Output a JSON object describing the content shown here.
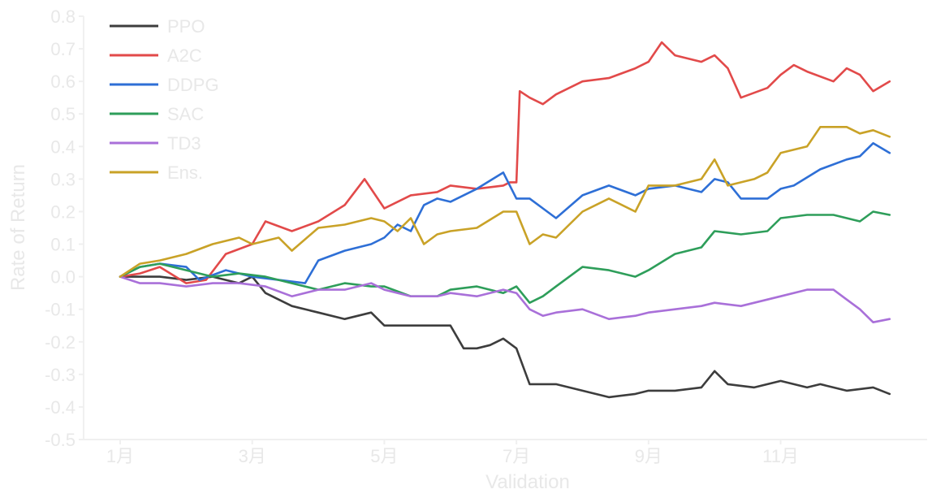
{
  "chart_data": {
    "type": "line",
    "title": "",
    "xlabel": "Validation",
    "ylabel": "Rate of Return",
    "ylim": [
      -0.5,
      0.8
    ],
    "yticks": [
      -0.5,
      -0.4,
      -0.3,
      -0.2,
      -0.1,
      0.0,
      0.1,
      0.2,
      0.3,
      0.4,
      0.5,
      0.6,
      0.7,
      0.8
    ],
    "ytick_labels": [
      "-0.5",
      "-0.4",
      "-0.3",
      "-0.2",
      "-0.1",
      "0.0",
      "0.1",
      "0.2",
      "0.3",
      "0.4",
      "0.5",
      "0.6",
      "0.7",
      "0.8"
    ],
    "xlim": [
      1,
      12.8
    ],
    "xticks": [
      1,
      3,
      5,
      7,
      9,
      11
    ],
    "xtick_labels": [
      "1月",
      "3月",
      "5月",
      "7月",
      "9月",
      "11月"
    ],
    "grid": false,
    "legend_position": "top-left",
    "series": [
      {
        "name": "PPO",
        "color": "#3d3d3d",
        "x": [
          1.0,
          1.3,
          1.6,
          2.0,
          2.4,
          2.8,
          3.0,
          3.2,
          3.6,
          4.0,
          4.4,
          4.8,
          5.0,
          5.4,
          5.8,
          6.0,
          6.2,
          6.4,
          6.6,
          6.8,
          7.0,
          7.2,
          7.4,
          7.6,
          8.0,
          8.4,
          8.8,
          9.0,
          9.4,
          9.8,
          10.0,
          10.2,
          10.6,
          11.0,
          11.4,
          11.6,
          12.0,
          12.4,
          12.65
        ],
        "values": [
          0.0,
          0.0,
          0.0,
          -0.01,
          0.0,
          -0.02,
          0.0,
          -0.05,
          -0.09,
          -0.11,
          -0.13,
          -0.11,
          -0.15,
          -0.15,
          -0.15,
          -0.15,
          -0.22,
          -0.22,
          -0.21,
          -0.19,
          -0.22,
          -0.33,
          -0.33,
          -0.33,
          -0.35,
          -0.37,
          -0.36,
          -0.35,
          -0.35,
          -0.34,
          -0.29,
          -0.33,
          -0.34,
          -0.32,
          -0.34,
          -0.33,
          -0.35,
          -0.34,
          -0.36
        ]
      },
      {
        "name": "A2C",
        "color": "#e24a4a",
        "x": [
          1.0,
          1.3,
          1.6,
          2.0,
          2.3,
          2.6,
          3.0,
          3.2,
          3.6,
          4.0,
          4.4,
          4.7,
          5.0,
          5.4,
          5.8,
          6.0,
          6.4,
          6.8,
          6.9,
          7.0,
          7.05,
          7.2,
          7.4,
          7.6,
          8.0,
          8.4,
          8.8,
          9.0,
          9.2,
          9.4,
          9.8,
          10.0,
          10.2,
          10.4,
          10.8,
          11.0,
          11.2,
          11.4,
          11.8,
          12.0,
          12.2,
          12.4,
          12.65
        ],
        "values": [
          0.0,
          0.01,
          0.03,
          -0.02,
          -0.01,
          0.07,
          0.1,
          0.17,
          0.14,
          0.17,
          0.22,
          0.3,
          0.21,
          0.25,
          0.26,
          0.28,
          0.27,
          0.28,
          0.29,
          0.29,
          0.57,
          0.55,
          0.53,
          0.56,
          0.6,
          0.61,
          0.64,
          0.66,
          0.72,
          0.68,
          0.66,
          0.68,
          0.64,
          0.55,
          0.58,
          0.62,
          0.65,
          0.63,
          0.6,
          0.64,
          0.62,
          0.57,
          0.6
        ]
      },
      {
        "name": "DDPG",
        "color": "#2e6fd6",
        "x": [
          1.0,
          1.3,
          1.6,
          2.0,
          2.2,
          2.6,
          3.0,
          3.4,
          3.8,
          4.0,
          4.4,
          4.8,
          5.0,
          5.2,
          5.4,
          5.6,
          5.8,
          6.0,
          6.4,
          6.8,
          7.0,
          7.2,
          7.4,
          7.6,
          8.0,
          8.4,
          8.8,
          9.0,
          9.4,
          9.8,
          10.0,
          10.2,
          10.4,
          10.8,
          11.0,
          11.2,
          11.6,
          12.0,
          12.2,
          12.4,
          12.65
        ],
        "values": [
          0.0,
          0.03,
          0.04,
          0.03,
          -0.01,
          0.02,
          0.0,
          -0.01,
          -0.02,
          0.05,
          0.08,
          0.1,
          0.12,
          0.16,
          0.14,
          0.22,
          0.24,
          0.23,
          0.27,
          0.32,
          0.24,
          0.24,
          0.21,
          0.18,
          0.25,
          0.28,
          0.25,
          0.27,
          0.28,
          0.26,
          0.3,
          0.29,
          0.24,
          0.24,
          0.27,
          0.28,
          0.33,
          0.36,
          0.37,
          0.41,
          0.38
        ]
      },
      {
        "name": "SAC",
        "color": "#2e9e5a",
        "x": [
          1.0,
          1.3,
          1.6,
          2.0,
          2.4,
          2.8,
          3.2,
          3.6,
          4.0,
          4.4,
          4.8,
          5.0,
          5.4,
          5.8,
          6.0,
          6.4,
          6.8,
          7.0,
          7.2,
          7.4,
          7.6,
          7.8,
          8.0,
          8.4,
          8.8,
          9.0,
          9.4,
          9.8,
          10.0,
          10.4,
          10.8,
          11.0,
          11.4,
          11.8,
          12.0,
          12.2,
          12.4,
          12.65
        ],
        "values": [
          0.0,
          0.03,
          0.04,
          0.02,
          0.0,
          0.01,
          0.0,
          -0.02,
          -0.04,
          -0.02,
          -0.03,
          -0.03,
          -0.06,
          -0.06,
          -0.04,
          -0.03,
          -0.05,
          -0.03,
          -0.08,
          -0.06,
          -0.03,
          0.0,
          0.03,
          0.02,
          0.0,
          0.02,
          0.07,
          0.09,
          0.14,
          0.13,
          0.14,
          0.18,
          0.19,
          0.19,
          0.18,
          0.17,
          0.2,
          0.19
        ]
      },
      {
        "name": "TD3",
        "color": "#a970d9",
        "x": [
          1.0,
          1.3,
          1.6,
          2.0,
          2.4,
          2.8,
          3.2,
          3.6,
          4.0,
          4.4,
          4.8,
          5.0,
          5.4,
          5.8,
          6.0,
          6.4,
          6.8,
          7.0,
          7.2,
          7.4,
          7.6,
          8.0,
          8.4,
          8.8,
          9.0,
          9.4,
          9.8,
          10.0,
          10.4,
          10.8,
          11.0,
          11.4,
          11.8,
          12.0,
          12.2,
          12.4,
          12.65
        ],
        "values": [
          0.0,
          -0.02,
          -0.02,
          -0.03,
          -0.02,
          -0.02,
          -0.03,
          -0.06,
          -0.04,
          -0.04,
          -0.02,
          -0.04,
          -0.06,
          -0.06,
          -0.05,
          -0.06,
          -0.04,
          -0.05,
          -0.1,
          -0.12,
          -0.11,
          -0.1,
          -0.13,
          -0.12,
          -0.11,
          -0.1,
          -0.09,
          -0.08,
          -0.09,
          -0.07,
          -0.06,
          -0.04,
          -0.04,
          -0.07,
          -0.1,
          -0.14,
          -0.13
        ]
      },
      {
        "name": "Ens.",
        "color": "#c9a227",
        "x": [
          1.0,
          1.3,
          1.6,
          2.0,
          2.4,
          2.8,
          3.0,
          3.4,
          3.6,
          4.0,
          4.4,
          4.8,
          5.0,
          5.2,
          5.4,
          5.6,
          5.8,
          6.0,
          6.4,
          6.8,
          7.0,
          7.2,
          7.4,
          7.6,
          8.0,
          8.4,
          8.8,
          9.0,
          9.4,
          9.8,
          10.0,
          10.2,
          10.6,
          10.8,
          11.0,
          11.4,
          11.6,
          12.0,
          12.2,
          12.4,
          12.65
        ],
        "values": [
          0.0,
          0.04,
          0.05,
          0.07,
          0.1,
          0.12,
          0.1,
          0.12,
          0.08,
          0.15,
          0.16,
          0.18,
          0.17,
          0.14,
          0.18,
          0.1,
          0.13,
          0.14,
          0.15,
          0.2,
          0.2,
          0.1,
          0.13,
          0.12,
          0.2,
          0.24,
          0.2,
          0.28,
          0.28,
          0.3,
          0.36,
          0.28,
          0.3,
          0.32,
          0.38,
          0.4,
          0.46,
          0.46,
          0.44,
          0.45,
          0.43
        ]
      }
    ]
  }
}
